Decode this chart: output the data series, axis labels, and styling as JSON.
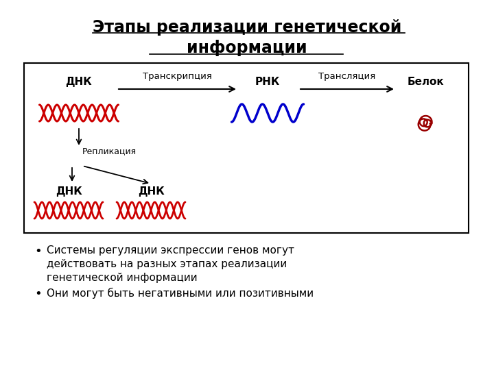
{
  "title_line1": "Этапы реализации генетической",
  "title_line2": "информации",
  "title_fontsize": 17,
  "bg_color": "#ffffff",
  "box_color": "#000000",
  "dna_color": "#cc0000",
  "rna_color": "#0000cc",
  "protein_color": "#990000",
  "text_color": "#000000",
  "label_dnk": "ДНК",
  "label_rnk": "РНК",
  "label_belok": "Белок",
  "label_transkr": "Транскрипция",
  "label_transl": "Трансляция",
  "label_replik": "Репликация",
  "bullet1_line1": "Системы регуляции экспрессии генов могут",
  "bullet1_line2": "действовать на разных этапах реализации",
  "bullet1_line3": "генетической информации",
  "bullet2": "Они могут быть негативными или позитивными"
}
